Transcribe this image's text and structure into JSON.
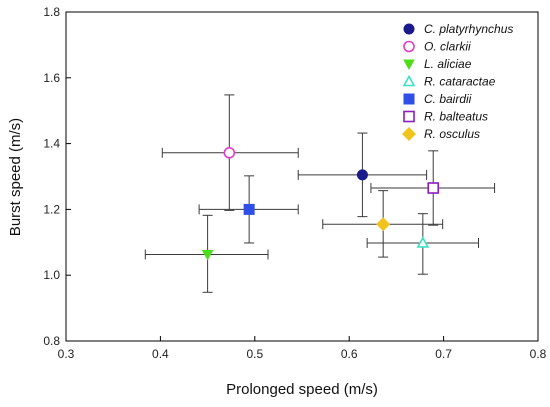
{
  "chart_data": {
    "type": "scatter",
    "xlabel": "Prolonged speed (m/s)",
    "ylabel": "Burst speed  (m/s)",
    "xlim": [
      0.3,
      0.8
    ],
    "ylim": [
      0.8,
      1.8
    ],
    "xticks": [
      "0.3",
      "0.4",
      "0.5",
      "0.6",
      "0.7",
      "0.8"
    ],
    "yticks": [
      "0.8",
      "1.0",
      "1.2",
      "1.4",
      "1.6",
      "1.8"
    ],
    "grid": false,
    "legend_position": "top-right",
    "series": [
      {
        "name": "C. platyrhynchus",
        "marker": "circle",
        "filled": true,
        "color": "#1a1a8c",
        "x": 0.614,
        "y": 1.305,
        "xerr": [
          0.546,
          0.682
        ],
        "yerr": [
          1.178,
          1.432
        ]
      },
      {
        "name": "O. clarkii",
        "marker": "circle",
        "filled": false,
        "color": "#e23ccf",
        "x": 0.473,
        "y": 1.372,
        "xerr": [
          0.402,
          0.546
        ],
        "yerr": [
          1.197,
          1.548
        ]
      },
      {
        "name": "L. aliciae",
        "marker": "triangle-down",
        "filled": true,
        "color": "#4ddc1c",
        "x": 0.45,
        "y": 1.063,
        "xerr": [
          0.384,
          0.514
        ],
        "yerr": [
          0.948,
          1.182
        ]
      },
      {
        "name": "R. cataractae",
        "marker": "triangle-up",
        "filled": false,
        "color": "#3de0c4",
        "x": 0.678,
        "y": 1.098,
        "xerr": [
          0.619,
          0.737
        ],
        "yerr": [
          1.003,
          1.187
        ]
      },
      {
        "name": "C. bairdii",
        "marker": "square",
        "filled": true,
        "color": "#2f4fe6",
        "x": 0.494,
        "y": 1.2,
        "xerr": [
          0.441,
          0.546
        ],
        "yerr": [
          1.098,
          1.302
        ]
      },
      {
        "name": "R. balteatus",
        "marker": "square",
        "filled": false,
        "color": "#8a1cc0",
        "x": 0.689,
        "y": 1.265,
        "xerr": [
          0.623,
          0.754
        ],
        "yerr": [
          1.152,
          1.378
        ]
      },
      {
        "name": "R. osculus",
        "marker": "diamond",
        "filled": true,
        "color": "#f2c31a",
        "x": 0.636,
        "y": 1.155,
        "xerr": [
          0.572,
          0.699
        ],
        "yerr": [
          1.055,
          1.257
        ]
      }
    ]
  }
}
